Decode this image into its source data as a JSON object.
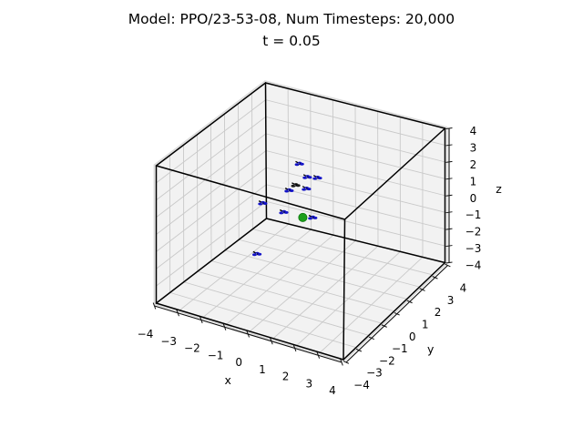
{
  "title": {
    "line1": "Model: PPO/23-53-08, Num Timesteps: 20,000",
    "line2": "t = 0.05"
  },
  "chart_data": {
    "type": "scatter",
    "projection": "3d",
    "title": "Model: PPO/23-53-08, Num Timesteps: 20,000",
    "subtitle": "t = 0.05",
    "grid": true,
    "pane_color": "#f2f2f2",
    "grid_color": "#c9c9c9",
    "edge_color": "#000000",
    "axes": {
      "x": {
        "label": "x",
        "range": [
          -4,
          4
        ],
        "ticks": [
          -4,
          -3,
          -2,
          -1,
          0,
          1,
          2,
          3,
          4
        ],
        "tick_labels": [
          "−4",
          "−3",
          "−2",
          "−1",
          "0",
          "1",
          "2",
          "3",
          "4"
        ]
      },
      "y": {
        "label": "y",
        "range": [
          -4,
          4
        ],
        "ticks": [
          -4,
          -3,
          -2,
          -1,
          0,
          1,
          2,
          3,
          4
        ],
        "tick_labels": [
          "−4",
          "−3",
          "−2",
          "−1",
          "0",
          "1",
          "2",
          "3",
          "4"
        ]
      },
      "z": {
        "label": "z",
        "range": [
          -4,
          4
        ],
        "ticks": [
          -4,
          -3,
          -2,
          -1,
          0,
          1,
          2,
          3,
          4
        ],
        "tick_labels": [
          "−4",
          "−3",
          "−2",
          "−1",
          "0",
          "1",
          "2",
          "3",
          "4"
        ]
      }
    },
    "series": [
      {
        "name": "drone-black",
        "marker": "drone",
        "color": "#1a1a1a",
        "dark_color": "#000000",
        "points": [
          [
            -0.85,
            0.93,
            1.0
          ]
        ]
      },
      {
        "name": "drones",
        "marker": "drone",
        "color": "#1414c8",
        "dark_color": "#07076a",
        "points": [
          [
            -0.9,
            1.3,
            2.0
          ],
          [
            -0.45,
            1.12,
            1.5
          ],
          [
            -0.08,
            1.25,
            1.5
          ],
          [
            -0.35,
            0.88,
            1.0
          ],
          [
            -0.85,
            0.44,
            1.0
          ],
          [
            -1.55,
            -0.34,
            0.5
          ],
          [
            -0.64,
            -0.33,
            0.3
          ],
          [
            0.46,
            -0.05,
            0.2
          ],
          [
            -1.08,
            -1.58,
            -1.5
          ]
        ]
      },
      {
        "name": "goal",
        "marker": "sphere",
        "color": "#1b9e1b",
        "dark_color": "#0d7a0d",
        "points": [
          [
            0.0,
            0.0,
            0.0
          ]
        ]
      }
    ]
  }
}
